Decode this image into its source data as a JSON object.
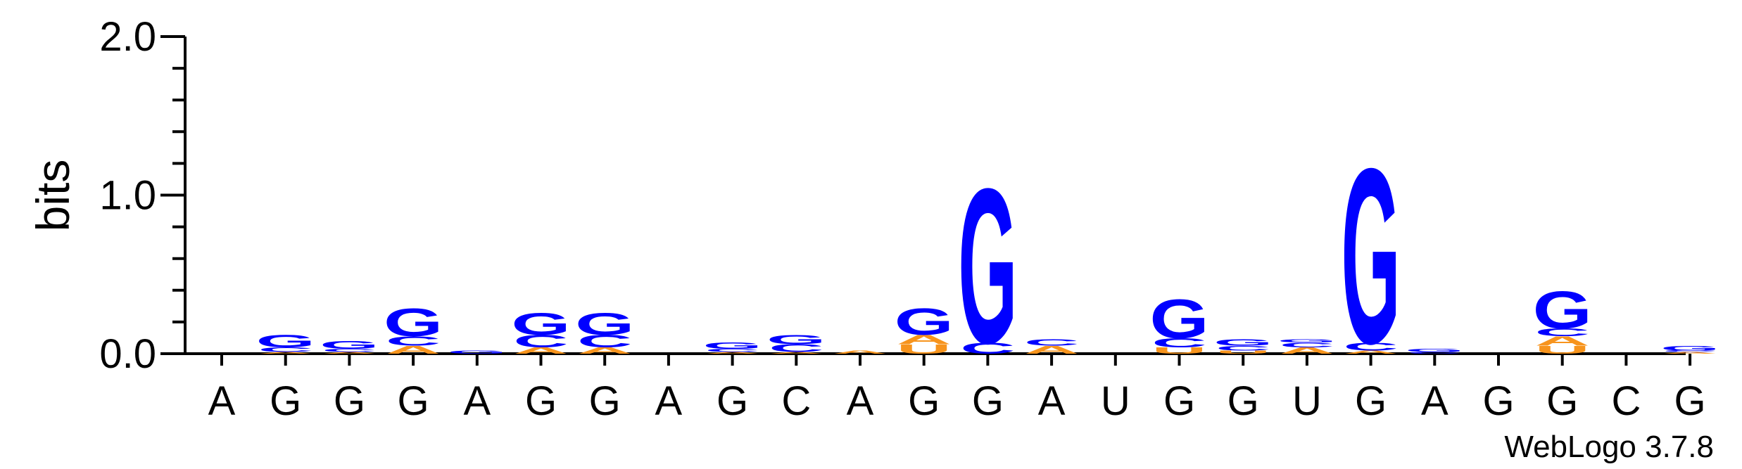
{
  "chart_data": {
    "type": "sequence-logo",
    "ylabel": "bits",
    "ylim": [
      0,
      2.0
    ],
    "yticks": [
      "0.0",
      "1.0",
      "2.0"
    ],
    "credit": "WebLogo 3.7.8",
    "colors": {
      "A": "#f7941d",
      "C": "#0000ff",
      "G": "#0000ff",
      "U": "#f7941d"
    },
    "positions": [
      {
        "label": "A",
        "stack": []
      },
      {
        "label": "G",
        "stack": [
          [
            "A",
            0.01
          ],
          [
            "C",
            0.03
          ],
          [
            "G",
            0.08
          ]
        ]
      },
      {
        "label": "G",
        "stack": [
          [
            "A",
            0.01
          ],
          [
            "C",
            0.02
          ],
          [
            "G",
            0.05
          ]
        ]
      },
      {
        "label": "G",
        "stack": [
          [
            "A",
            0.05
          ],
          [
            "C",
            0.06
          ],
          [
            "G",
            0.18
          ]
        ]
      },
      {
        "label": "A",
        "stack": [
          [
            "G",
            0.02
          ]
        ]
      },
      {
        "label": "G",
        "stack": [
          [
            "A",
            0.04
          ],
          [
            "C",
            0.08
          ],
          [
            "G",
            0.14
          ]
        ]
      },
      {
        "label": "G",
        "stack": [
          [
            "A",
            0.04
          ],
          [
            "C",
            0.08
          ],
          [
            "G",
            0.14
          ]
        ]
      },
      {
        "label": "A",
        "stack": []
      },
      {
        "label": "G",
        "stack": [
          [
            "A",
            0.01
          ],
          [
            "C",
            0.02
          ],
          [
            "G",
            0.04
          ]
        ]
      },
      {
        "label": "C",
        "stack": [
          [
            "A",
            0.01
          ],
          [
            "C",
            0.05
          ],
          [
            "G",
            0.06
          ]
        ]
      },
      {
        "label": "A",
        "stack": [
          [
            "A",
            0.02
          ]
        ]
      },
      {
        "label": "G",
        "stack": [
          [
            "U",
            0.06
          ],
          [
            "A",
            0.06
          ],
          [
            "G",
            0.17
          ]
        ]
      },
      {
        "label": "G",
        "stack": [
          [
            "C",
            0.07
          ],
          [
            "G",
            1.0
          ]
        ]
      },
      {
        "label": "A",
        "stack": [
          [
            "A",
            0.05
          ],
          [
            "C",
            0.04
          ]
        ]
      },
      {
        "label": "U",
        "stack": []
      },
      {
        "label": "G",
        "stack": [
          [
            "U",
            0.04
          ],
          [
            "C",
            0.06
          ],
          [
            "G",
            0.25
          ]
        ]
      },
      {
        "label": "G",
        "stack": [
          [
            "U",
            0.02
          ],
          [
            "C",
            0.03
          ],
          [
            "G",
            0.04
          ]
        ]
      },
      {
        "label": "U",
        "stack": [
          [
            "A",
            0.04
          ],
          [
            "C",
            0.03
          ],
          [
            "G",
            0.02
          ]
        ]
      },
      {
        "label": "G",
        "stack": [
          [
            "A",
            0.02
          ],
          [
            "C",
            0.05
          ],
          [
            "G",
            1.13
          ]
        ]
      },
      {
        "label": "A",
        "stack": [
          [
            "C",
            0.01
          ],
          [
            "G",
            0.02
          ]
        ]
      },
      {
        "label": "G",
        "stack": []
      },
      {
        "label": "G",
        "stack": [
          [
            "U",
            0.05
          ],
          [
            "A",
            0.06
          ],
          [
            "C",
            0.05
          ],
          [
            "G",
            0.24
          ]
        ]
      },
      {
        "label": "C",
        "stack": []
      },
      {
        "label": "G",
        "stack": [
          [
            "A",
            0.01
          ],
          [
            "C",
            0.01
          ],
          [
            "G",
            0.03
          ]
        ]
      }
    ]
  }
}
